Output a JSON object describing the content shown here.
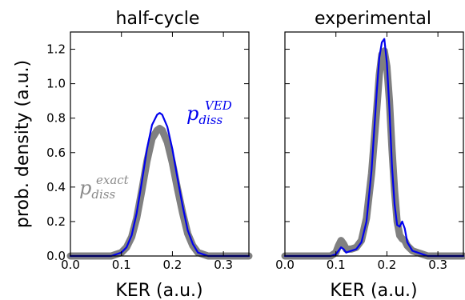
{
  "chart_data": [
    {
      "type": "line",
      "title": "half-cycle",
      "xlabel": "KER (a.u.)",
      "ylabel": "prob. density (a.u.)",
      "xlim": [
        0.0,
        0.35
      ],
      "ylim": [
        0.0,
        1.3
      ],
      "xticks": [
        "0.0",
        "0.1",
        "0.2",
        "0.3"
      ],
      "yticks": [
        "0.0",
        "0.2",
        "0.4",
        "0.6",
        "0.8",
        "1.0",
        "1.2"
      ],
      "grid": false,
      "series": [
        {
          "name": "exact",
          "color": "#808080",
          "x": [
            0.0,
            0.08,
            0.1,
            0.11,
            0.12,
            0.13,
            0.14,
            0.15,
            0.16,
            0.17,
            0.175,
            0.18,
            0.19,
            0.2,
            0.21,
            0.22,
            0.23,
            0.24,
            0.25,
            0.27,
            0.35
          ],
          "y": [
            0.0,
            0.0,
            0.02,
            0.05,
            0.11,
            0.22,
            0.38,
            0.55,
            0.68,
            0.73,
            0.74,
            0.73,
            0.66,
            0.54,
            0.39,
            0.25,
            0.13,
            0.06,
            0.02,
            0.0,
            0.0
          ]
        },
        {
          "name": "VED",
          "color": "#0000ee",
          "x": [
            0.0,
            0.08,
            0.1,
            0.11,
            0.12,
            0.13,
            0.14,
            0.15,
            0.16,
            0.17,
            0.175,
            0.18,
            0.19,
            0.2,
            0.21,
            0.22,
            0.23,
            0.24,
            0.25,
            0.27,
            0.35
          ],
          "y": [
            0.0,
            0.0,
            0.02,
            0.05,
            0.12,
            0.25,
            0.43,
            0.62,
            0.76,
            0.82,
            0.83,
            0.82,
            0.75,
            0.62,
            0.45,
            0.29,
            0.15,
            0.07,
            0.02,
            0.0,
            0.0
          ]
        }
      ],
      "annotations": [
        {
          "base": "p",
          "sub": "diss",
          "sup": "VED",
          "color": "#0000ee"
        },
        {
          "base": "p",
          "sub": "diss",
          "sup": "exact",
          "color": "#8a8a8a"
        }
      ]
    },
    {
      "type": "line",
      "title": "experimental",
      "xlabel": "KER (a.u.)",
      "xlim": [
        0.0,
        0.35
      ],
      "ylim": [
        0.0,
        1.3
      ],
      "xticks": [
        "0.0",
        "0.1",
        "0.2",
        "0.3"
      ],
      "grid": false,
      "series": [
        {
          "name": "exact",
          "color": "#808080",
          "x": [
            0.0,
            0.09,
            0.1,
            0.105,
            0.11,
            0.115,
            0.12,
            0.13,
            0.14,
            0.15,
            0.16,
            0.17,
            0.18,
            0.185,
            0.19,
            0.195,
            0.2,
            0.205,
            0.21,
            0.215,
            0.22,
            0.225,
            0.23,
            0.235,
            0.24,
            0.25,
            0.26,
            0.27,
            0.28,
            0.35
          ],
          "y": [
            0.0,
            0.0,
            0.02,
            0.06,
            0.09,
            0.07,
            0.04,
            0.04,
            0.05,
            0.09,
            0.22,
            0.48,
            0.85,
            1.05,
            1.17,
            1.19,
            1.1,
            0.9,
            0.62,
            0.38,
            0.2,
            0.12,
            0.1,
            0.09,
            0.06,
            0.03,
            0.02,
            0.01,
            0.0,
            0.0
          ]
        },
        {
          "name": "VED",
          "color": "#0000ee",
          "x": [
            0.0,
            0.09,
            0.1,
            0.105,
            0.11,
            0.115,
            0.12,
            0.13,
            0.14,
            0.15,
            0.16,
            0.17,
            0.18,
            0.185,
            0.19,
            0.195,
            0.2,
            0.205,
            0.21,
            0.215,
            0.22,
            0.225,
            0.23,
            0.235,
            0.24,
            0.25,
            0.26,
            0.27,
            0.28,
            0.35
          ],
          "y": [
            0.0,
            0.0,
            0.01,
            0.03,
            0.05,
            0.04,
            0.02,
            0.03,
            0.04,
            0.08,
            0.2,
            0.5,
            0.95,
            1.15,
            1.24,
            1.26,
            1.12,
            0.85,
            0.52,
            0.3,
            0.18,
            0.17,
            0.2,
            0.16,
            0.08,
            0.03,
            0.02,
            0.01,
            0.0,
            0.0
          ]
        }
      ]
    }
  ]
}
